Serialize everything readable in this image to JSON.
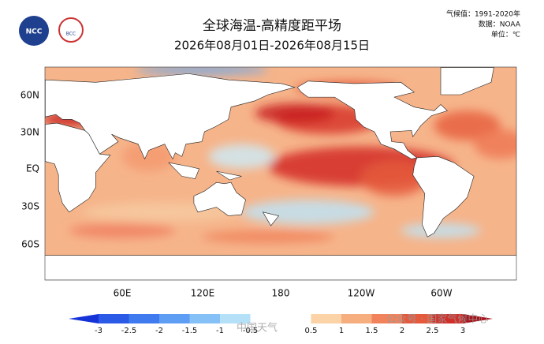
{
  "header": {
    "title": "全球海温-高精度距平场",
    "subtitle": "2026年08月01日-2026年08月15日",
    "info": [
      "气候值：1991-2020年",
      "数据：NOAA",
      "单位：℃"
    ],
    "logos": [
      "NCC",
      "BCC"
    ]
  },
  "map": {
    "lat_labels": [
      "60N",
      "30N",
      "EQ",
      "30S",
      "60S"
    ],
    "lon_labels": [
      "60E",
      "120E",
      "180",
      "120W",
      "60W"
    ]
  },
  "colorbar": {
    "ticks": [
      -3,
      -2.5,
      -2,
      -1.5,
      -1,
      -0.5,
      0.5,
      1,
      1.5,
      2,
      2.5,
      3
    ],
    "colors": [
      "#1633d8",
      "#2a5ae6",
      "#3f7bee",
      "#5d9df4",
      "#85c0f7",
      "#b4e0f8",
      "#ffffff",
      "#fbd3a6",
      "#f7ae7f",
      "#f0835c",
      "#e55a3d",
      "#d1302a",
      "#a8111a"
    ]
  },
  "watermarks": [
    "中国天气",
    "公众号 · 国家气候中心"
  ]
}
